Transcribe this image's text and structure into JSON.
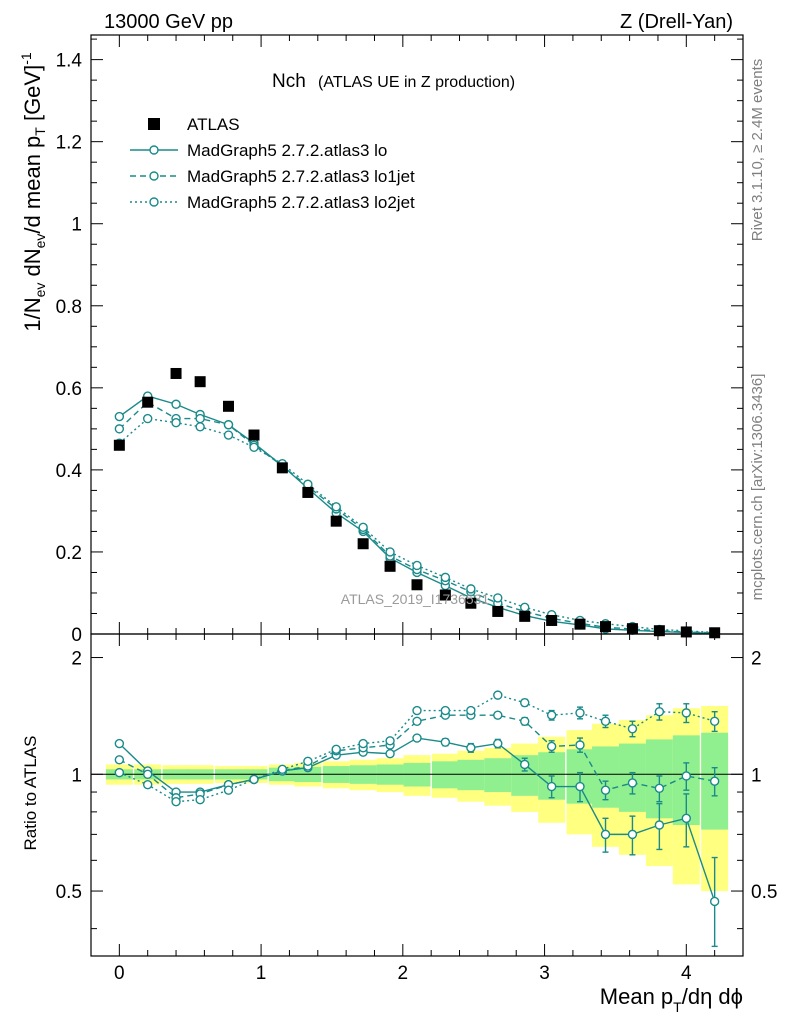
{
  "chart_data": {
    "type": "line",
    "header_left": "13000 GeV pp",
    "header_right": "Z (Drell-Yan)",
    "title_main": "Nch",
    "title_sub": "(ATLAS UE in Z production)",
    "ylabel_top": "1/N_ev dN_ev/d mean p_T [GeV]^-1",
    "ylabel_bottom": "Ratio to ATLAS",
    "xlabel": "Mean p_T/dη dϕ",
    "side_label_top": "Rivet 3.1.10, ≥ 2.4M events",
    "side_label_bottom": "mcplots.cern.ch [arXiv:1306.3436]",
    "watermark": "ATLAS_2019_I1736531",
    "xlim": [
      -0.2,
      4.4
    ],
    "ylim_top": [
      0,
      1.46
    ],
    "ylim_bottom": [
      0.34,
      2.3
    ],
    "xticks": [
      "0",
      "1",
      "2",
      "3",
      "4"
    ],
    "yticks_top": [
      "0",
      "0.2",
      "0.4",
      "0.6",
      "0.8",
      "1",
      "1.2",
      "1.4"
    ],
    "yticks_bottom": [
      "0.5",
      "1",
      "2"
    ],
    "grid": false,
    "legend_position": "top-left",
    "x": [
      0,
      0.2,
      0.4,
      0.57,
      0.77,
      0.95,
      1.15,
      1.33,
      1.53,
      1.72,
      1.91,
      2.1,
      2.3,
      2.48,
      2.67,
      2.86,
      3.05,
      3.25,
      3.43,
      3.62,
      3.81,
      4.0,
      4.2
    ],
    "series": [
      {
        "name": "ATLAS",
        "kind": "data",
        "color": "#000000",
        "values": [
          0.46,
          0.565,
          0.635,
          0.615,
          0.555,
          0.485,
          0.405,
          0.345,
          0.275,
          0.22,
          0.165,
          0.12,
          0.095,
          0.075,
          0.055,
          0.043,
          0.033,
          0.024,
          0.018,
          0.013,
          0.008,
          0.005,
          0.003
        ],
        "band_green": [
          0.03,
          0.03,
          0.03,
          0.03,
          0.03,
          0.03,
          0.04,
          0.045,
          0.05,
          0.055,
          0.06,
          0.07,
          0.08,
          0.09,
          0.1,
          0.12,
          0.14,
          0.16,
          0.18,
          0.2,
          0.23,
          0.26,
          0.28
        ],
        "band_yellow": [
          0.06,
          0.06,
          0.055,
          0.055,
          0.05,
          0.05,
          0.06,
          0.07,
          0.08,
          0.09,
          0.1,
          0.12,
          0.13,
          0.15,
          0.17,
          0.2,
          0.25,
          0.3,
          0.35,
          0.38,
          0.42,
          0.48,
          0.5
        ]
      },
      {
        "name": "MadGraph5 2.7.2.atlas3 lo",
        "kind": "mc",
        "style": "solid",
        "color": "#1a8a8a",
        "values": [
          0.53,
          0.58,
          0.56,
          0.535,
          0.51,
          0.465,
          0.41,
          0.355,
          0.295,
          0.25,
          0.185,
          0.15,
          0.118,
          0.088,
          0.065,
          0.045,
          0.031,
          0.022,
          0.0125,
          0.009,
          0.006,
          0.0038,
          0.0014
        ],
        "ratio": [
          1.2,
          1.02,
          0.9,
          0.9,
          0.94,
          0.97,
          1.02,
          1.04,
          1.12,
          1.14,
          1.13,
          1.24,
          1.21,
          1.17,
          1.2,
          1.06,
          0.93,
          0.93,
          0.7,
          0.7,
          0.74,
          0.77,
          0.47
        ],
        "ratio_err": [
          0.005,
          0.005,
          0.005,
          0.005,
          0.005,
          0.005,
          0.005,
          0.006,
          0.008,
          0.01,
          0.015,
          0.02,
          0.025,
          0.03,
          0.03,
          0.04,
          0.06,
          0.08,
          0.07,
          0.08,
          0.1,
          0.12,
          0.14
        ]
      },
      {
        "name": "MadGraph5 2.7.2.atlas3 lo1jet",
        "kind": "mc",
        "style": "dashed",
        "color": "#1a8a8a",
        "values": [
          0.5,
          0.565,
          0.525,
          0.525,
          0.51,
          0.46,
          0.41,
          0.36,
          0.305,
          0.255,
          0.19,
          0.157,
          0.13,
          0.103,
          0.075,
          0.055,
          0.038,
          0.026,
          0.0165,
          0.012,
          0.0076,
          0.005,
          0.0028
        ],
        "ratio": [
          1.09,
          1.0,
          0.87,
          0.89,
          0.94,
          0.97,
          1.02,
          1.05,
          1.15,
          1.17,
          1.19,
          1.37,
          1.42,
          1.42,
          1.42,
          1.37,
          1.18,
          1.19,
          0.91,
          0.95,
          0.92,
          0.99,
          0.96
        ],
        "ratio_err": [
          0.005,
          0.005,
          0.005,
          0.005,
          0.005,
          0.005,
          0.005,
          0.006,
          0.008,
          0.01,
          0.015,
          0.02,
          0.02,
          0.025,
          0.025,
          0.03,
          0.04,
          0.05,
          0.05,
          0.06,
          0.07,
          0.08,
          0.08
        ]
      },
      {
        "name": "MadGraph5 2.7.2.atlas3 lo2jet",
        "kind": "mc",
        "style": "dotted",
        "color": "#1a8a8a",
        "values": [
          0.465,
          0.525,
          0.515,
          0.505,
          0.485,
          0.455,
          0.415,
          0.365,
          0.31,
          0.26,
          0.2,
          0.167,
          0.138,
          0.11,
          0.088,
          0.065,
          0.047,
          0.033,
          0.025,
          0.018,
          0.0112,
          0.0074,
          0.004
        ],
        "ratio": [
          1.01,
          0.94,
          0.85,
          0.86,
          0.91,
          0.97,
          1.03,
          1.08,
          1.16,
          1.2,
          1.22,
          1.46,
          1.46,
          1.46,
          1.6,
          1.53,
          1.42,
          1.44,
          1.37,
          1.31,
          1.45,
          1.44,
          1.37
        ],
        "ratio_err": [
          0.005,
          0.005,
          0.005,
          0.005,
          0.005,
          0.005,
          0.005,
          0.006,
          0.008,
          0.01,
          0.015,
          0.02,
          0.02,
          0.025,
          0.025,
          0.03,
          0.04,
          0.05,
          0.05,
          0.06,
          0.07,
          0.08,
          0.08
        ]
      }
    ]
  }
}
